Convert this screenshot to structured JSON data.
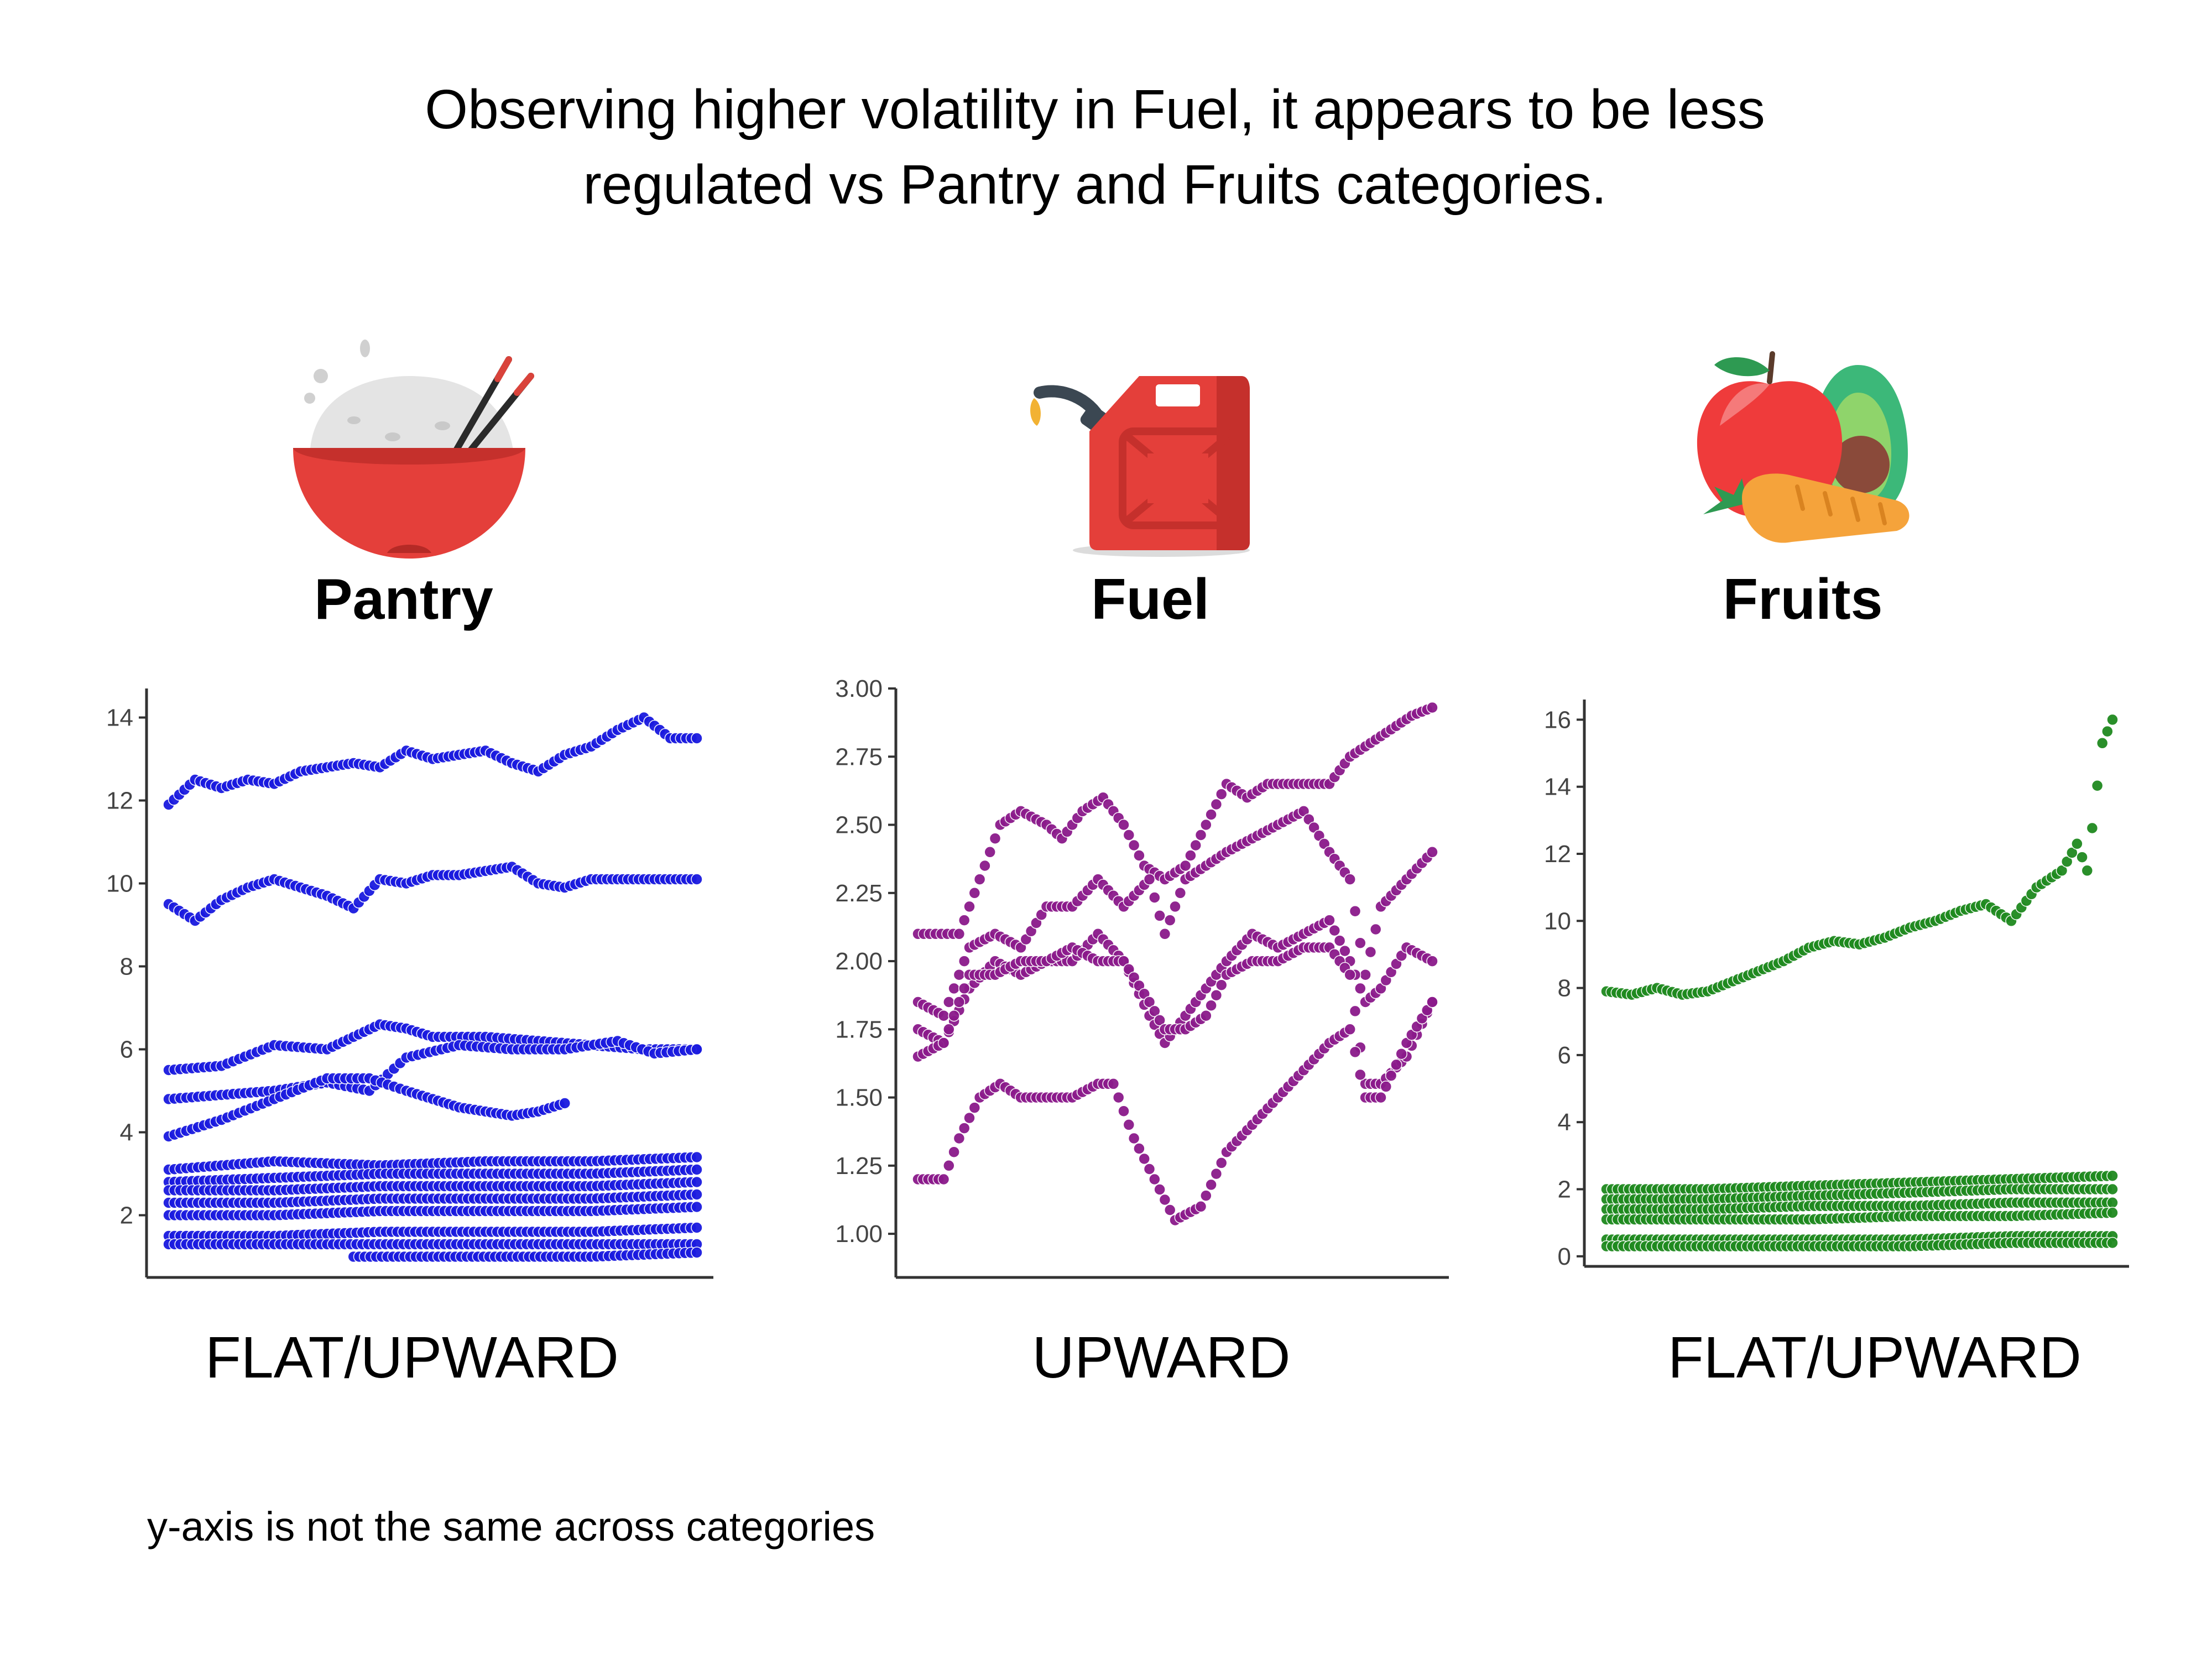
{
  "title_lines": [
    "Observing higher volatility in Fuel, it appears to be less",
    "regulated vs Pantry and Fruits categories."
  ],
  "footnote": "y-axis is not the same across categories",
  "panels": [
    {
      "id": "pantry",
      "label": "Pantry",
      "trend": "FLAT/UPWARD",
      "icon": "rice-bowl-icon",
      "color": "#1a1adf"
    },
    {
      "id": "fuel",
      "label": "Fuel",
      "trend": "UPWARD",
      "icon": "fuel-can-icon",
      "color": "#8b1a8b"
    },
    {
      "id": "fruits",
      "label": "Fruits",
      "trend": "FLAT/UPWARD",
      "icon": "fruits-vegetables-icon",
      "color": "#1f8a1f"
    }
  ],
  "chart_data": [
    {
      "type": "scatter",
      "title": "Pantry",
      "color": "#1a1adf",
      "yticks": [
        "2",
        "4",
        "6",
        "8",
        "10",
        "12",
        "14"
      ],
      "ylim": [
        0.5,
        14.7
      ],
      "x_range": [
        0,
        100
      ],
      "series": [
        {
          "x": [
            0,
            5,
            10,
            15,
            20,
            25,
            30,
            35,
            40,
            45,
            50,
            55,
            60,
            65,
            70,
            75,
            80,
            85,
            90,
            95,
            100
          ],
          "y": [
            11.9,
            12.5,
            12.3,
            12.5,
            12.4,
            12.7,
            12.8,
            12.9,
            12.8,
            13.2,
            13.0,
            13.1,
            13.2,
            12.9,
            12.7,
            13.1,
            13.3,
            13.7,
            14.0,
            13.5,
            13.5
          ]
        },
        {
          "x": [
            0,
            5,
            10,
            15,
            20,
            25,
            30,
            35,
            40,
            45,
            50,
            55,
            60,
            65,
            70,
            75,
            80,
            85,
            90,
            95,
            100
          ],
          "y": [
            9.5,
            9.1,
            9.6,
            9.9,
            10.1,
            9.9,
            9.7,
            9.4,
            10.1,
            10.0,
            10.2,
            10.2,
            10.3,
            10.4,
            10.0,
            9.9,
            10.1,
            10.1,
            10.1,
            10.1,
            10.1
          ]
        },
        {
          "x": [
            0,
            10,
            20,
            30,
            35,
            40,
            45,
            50,
            60,
            70,
            80,
            90,
            100
          ],
          "y": [
            5.5,
            5.6,
            6.1,
            6.0,
            6.3,
            6.6,
            6.5,
            6.3,
            6.3,
            6.2,
            6.1,
            6.0,
            6.0
          ]
        },
        {
          "x": [
            0,
            10,
            20,
            30,
            38,
            45,
            55,
            65,
            75,
            85,
            92,
            100
          ],
          "y": [
            4.8,
            4.9,
            5.0,
            5.2,
            5.0,
            5.8,
            6.1,
            6.0,
            6.0,
            6.2,
            5.9,
            6.0
          ]
        },
        {
          "x": [
            0,
            10,
            20,
            30,
            38,
            45,
            50,
            55,
            60,
            65,
            70,
            75
          ],
          "y": [
            3.9,
            4.3,
            4.8,
            5.3,
            5.3,
            5.0,
            4.8,
            4.6,
            4.5,
            4.4,
            4.5,
            4.7
          ]
        },
        {
          "x": [
            0,
            20,
            40,
            60,
            80,
            100
          ],
          "y": [
            3.1,
            3.3,
            3.2,
            3.3,
            3.3,
            3.4
          ]
        },
        {
          "x": [
            0,
            20,
            40,
            60,
            80,
            100
          ],
          "y": [
            2.8,
            2.9,
            3.0,
            3.0,
            3.0,
            3.1
          ]
        },
        {
          "x": [
            0,
            20,
            40,
            60,
            80,
            100
          ],
          "y": [
            2.6,
            2.6,
            2.7,
            2.7,
            2.7,
            2.8
          ]
        },
        {
          "x": [
            0,
            20,
            40,
            60,
            80,
            100
          ],
          "y": [
            2.3,
            2.3,
            2.4,
            2.4,
            2.4,
            2.5
          ]
        },
        {
          "x": [
            0,
            20,
            40,
            60,
            80,
            100
          ],
          "y": [
            2.0,
            2.0,
            2.1,
            2.1,
            2.1,
            2.2
          ]
        },
        {
          "x": [
            0,
            20,
            40,
            60,
            80,
            100
          ],
          "y": [
            1.5,
            1.5,
            1.6,
            1.6,
            1.6,
            1.7
          ]
        },
        {
          "x": [
            0,
            20,
            40,
            60,
            80,
            100
          ],
          "y": [
            1.3,
            1.3,
            1.3,
            1.3,
            1.3,
            1.3
          ]
        },
        {
          "x": [
            35,
            50,
            65,
            80,
            100
          ],
          "y": [
            1.0,
            1.0,
            1.0,
            1.0,
            1.1
          ]
        }
      ]
    },
    {
      "type": "scatter",
      "title": "Fuel",
      "color": "#8b1a8b",
      "yticks": [
        "1.00",
        "1.25",
        "1.50",
        "1.75",
        "2.00",
        "2.25",
        "2.50",
        "2.75",
        "3.00"
      ],
      "ylim": [
        0.84,
        3.0
      ],
      "x_range": [
        0,
        100
      ],
      "series": [
        {
          "x": [
            0,
            8,
            12,
            16,
            20,
            25,
            28,
            32,
            36,
            40,
            44,
            48,
            52,
            56,
            60,
            64,
            68,
            72,
            76,
            80,
            84,
            88,
            92,
            96,
            100
          ],
          "y": [
            2.1,
            2.1,
            2.3,
            2.5,
            2.55,
            2.5,
            2.45,
            2.55,
            2.6,
            2.5,
            2.35,
            2.3,
            2.35,
            2.5,
            2.65,
            2.6,
            2.65,
            2.65,
            2.65,
            2.65,
            2.75,
            2.8,
            2.85,
            2.9,
            2.93
          ]
        },
        {
          "x": [
            0,
            5,
            10,
            15,
            20,
            25,
            30,
            35,
            40,
            45,
            48,
            52,
            56,
            60,
            65,
            70,
            75,
            80,
            84,
            87,
            90,
            95,
            100
          ],
          "y": [
            1.85,
            1.8,
            2.05,
            2.1,
            2.05,
            2.2,
            2.2,
            2.3,
            2.2,
            2.3,
            2.1,
            2.3,
            2.35,
            2.4,
            2.45,
            2.5,
            2.55,
            2.4,
            2.3,
            1.95,
            2.2,
            2.3,
            2.4
          ]
        },
        {
          "x": [
            0,
            5,
            10,
            15,
            20,
            25,
            30,
            35,
            40,
            45,
            48,
            52,
            56,
            60,
            65,
            70,
            75,
            80,
            84,
            87,
            90,
            95,
            100
          ],
          "y": [
            1.75,
            1.7,
            1.9,
            2.0,
            1.95,
            2.0,
            2.0,
            2.1,
            2.0,
            1.8,
            1.7,
            1.8,
            1.9,
            2.0,
            2.1,
            2.05,
            2.1,
            2.15,
            2.0,
            1.85,
            1.9,
            2.05,
            2.0
          ]
        },
        {
          "x": [
            0,
            5,
            10,
            15,
            20,
            25,
            30,
            35,
            40,
            45,
            48,
            52,
            56,
            60,
            65,
            70,
            75,
            80,
            84,
            87,
            90,
            95,
            100
          ],
          "y": [
            1.65,
            1.7,
            1.95,
            1.95,
            2.0,
            2.0,
            2.05,
            2.0,
            2.0,
            1.85,
            1.75,
            1.75,
            1.8,
            1.95,
            2.0,
            2.0,
            2.05,
            2.05,
            1.95,
            1.55,
            1.55,
            1.65,
            1.85
          ]
        },
        {
          "x": [
            0,
            5,
            8,
            12,
            16,
            20,
            25,
            30,
            35,
            38,
            42,
            46,
            50,
            55,
            60,
            65,
            70,
            75,
            80,
            84,
            87,
            90,
            95,
            100
          ],
          "y": [
            1.2,
            1.2,
            1.35,
            1.5,
            1.55,
            1.5,
            1.5,
            1.5,
            1.55,
            1.55,
            1.35,
            1.2,
            1.05,
            1.1,
            1.3,
            1.4,
            1.5,
            1.6,
            1.7,
            1.75,
            1.5,
            1.5,
            1.7,
            1.85
          ]
        }
      ]
    },
    {
      "type": "scatter",
      "title": "Fruits",
      "color": "#1f8a1f",
      "yticks": [
        "0",
        "2",
        "4",
        "6",
        "8",
        "10",
        "12",
        "14",
        "16"
      ],
      "ylim": [
        -0.3,
        16.6
      ],
      "x_range": [
        0,
        100
      ],
      "series": [
        {
          "x": [
            0,
            5,
            10,
            15,
            20,
            25,
            30,
            35,
            40,
            45,
            50,
            55,
            60,
            65,
            70,
            75,
            80,
            85,
            90,
            93,
            95,
            98,
            100
          ],
          "y": [
            7.9,
            7.8,
            8.0,
            7.8,
            7.9,
            8.2,
            8.5,
            8.8,
            9.2,
            9.4,
            9.3,
            9.5,
            9.8,
            10.0,
            10.3,
            10.5,
            10.0,
            11.0,
            11.5,
            12.3,
            11.5,
            15.3,
            16.0
          ]
        },
        {
          "x": [
            0,
            20,
            40,
            60,
            80,
            100
          ],
          "y": [
            2.0,
            2.0,
            2.1,
            2.2,
            2.3,
            2.4
          ]
        },
        {
          "x": [
            0,
            20,
            40,
            60,
            80,
            100
          ],
          "y": [
            1.7,
            1.7,
            1.8,
            1.9,
            2.0,
            2.0
          ]
        },
        {
          "x": [
            0,
            20,
            40,
            60,
            80,
            100
          ],
          "y": [
            1.4,
            1.4,
            1.5,
            1.5,
            1.6,
            1.6
          ]
        },
        {
          "x": [
            0,
            20,
            40,
            60,
            80,
            100
          ],
          "y": [
            1.1,
            1.1,
            1.1,
            1.2,
            1.2,
            1.3
          ]
        },
        {
          "x": [
            0,
            20,
            40,
            60,
            80,
            100
          ],
          "y": [
            0.5,
            0.5,
            0.5,
            0.5,
            0.6,
            0.6
          ]
        },
        {
          "x": [
            0,
            20,
            40,
            60,
            80,
            100
          ],
          "y": [
            0.3,
            0.3,
            0.3,
            0.3,
            0.4,
            0.4
          ]
        }
      ]
    }
  ]
}
